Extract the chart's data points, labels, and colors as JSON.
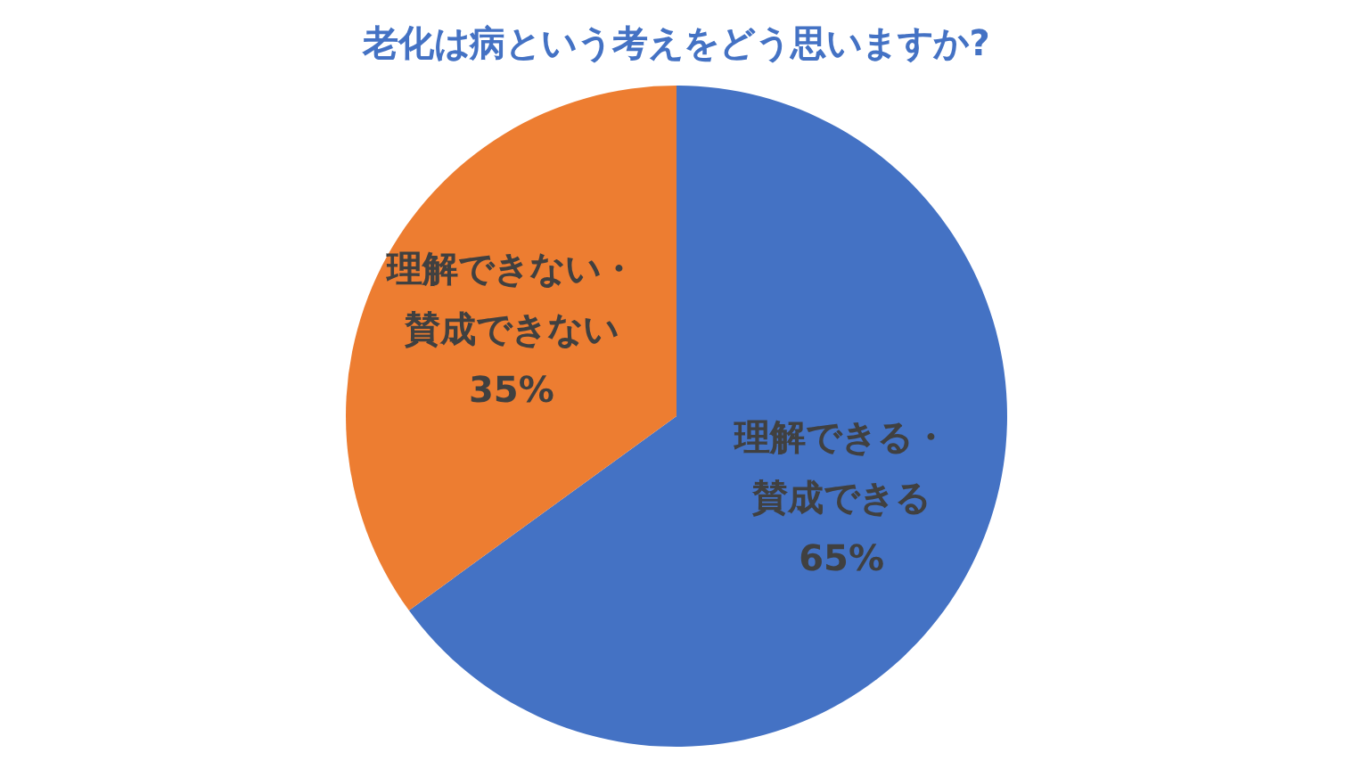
{
  "chart_data": {
    "type": "pie",
    "title": "老化は病という考えをどう思いますか?",
    "categories": [
      "理解できる・賛成できる",
      "理解できない・賛成できない"
    ],
    "values": [
      65,
      35
    ],
    "value_labels": [
      "65%",
      "35%"
    ],
    "colors": [
      "#4472c4",
      "#ed7d31"
    ],
    "legend": false
  }
}
